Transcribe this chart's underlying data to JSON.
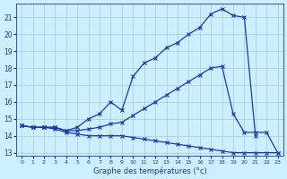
{
  "xlabel": "Graphe des températures (°c)",
  "bg_color": "#cceeff",
  "line_color": "#1a3aaa",
  "grid_color": "#aacccc",
  "ylim": [
    12.8,
    21.8
  ],
  "xlim": [
    -0.5,
    23.5
  ],
  "yticks": [
    13,
    14,
    15,
    16,
    17,
    18,
    19,
    20,
    21
  ],
  "xticks": [
    0,
    1,
    2,
    3,
    4,
    5,
    6,
    7,
    8,
    9,
    10,
    11,
    12,
    13,
    14,
    15,
    16,
    17,
    18,
    19,
    20,
    21,
    22,
    23
  ],
  "series1_x": [
    0,
    1,
    2,
    3,
    4,
    5,
    6,
    7,
    8,
    9,
    10,
    11,
    12,
    13,
    14,
    15,
    16,
    17,
    18,
    19,
    20,
    21,
    22,
    23
  ],
  "series1_y": [
    14.6,
    14.5,
    14.5,
    14.4,
    14.2,
    14.1,
    14.0,
    14.0,
    14.0,
    14.0,
    13.9,
    13.8,
    13.7,
    13.6,
    13.5,
    13.4,
    13.3,
    13.2,
    13.1,
    13.0,
    13.0,
    13.0,
    13.0,
    13.0
  ],
  "series2_x": [
    0,
    1,
    2,
    3,
    4,
    5,
    6,
    7,
    8,
    9,
    10,
    11,
    12,
    13,
    14,
    15,
    16,
    17,
    18,
    19,
    20,
    21,
    22,
    23
  ],
  "series2_y": [
    14.6,
    14.5,
    14.5,
    14.5,
    14.3,
    14.3,
    14.4,
    14.5,
    14.7,
    14.8,
    15.2,
    15.6,
    16.0,
    16.4,
    16.8,
    17.2,
    17.6,
    18.0,
    18.1,
    15.3,
    14.2,
    14.2,
    14.2,
    13.0
  ],
  "series3_x": [
    0,
    1,
    2,
    3,
    4,
    5,
    6,
    7,
    8,
    9,
    10,
    11,
    12,
    13,
    14,
    15,
    16,
    17,
    18,
    19,
    20,
    21
  ],
  "series3_y": [
    14.6,
    14.5,
    14.5,
    14.5,
    14.3,
    14.5,
    15.0,
    15.3,
    16.0,
    15.5,
    17.5,
    18.3,
    18.6,
    19.2,
    19.5,
    20.0,
    20.4,
    21.2,
    21.5,
    21.1,
    21.0,
    14.0
  ]
}
